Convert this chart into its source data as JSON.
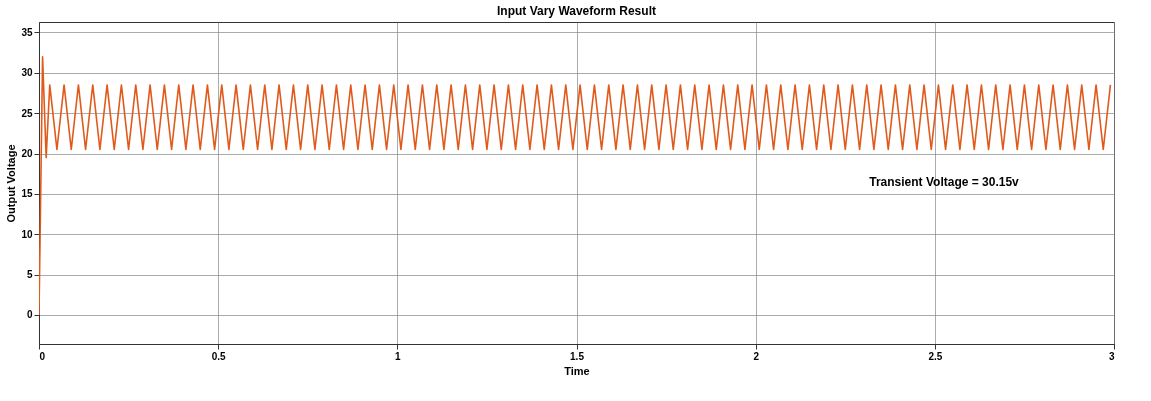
{
  "chart_data": {
    "type": "line",
    "title": "Input Vary Waveform Result",
    "xlabel": "Time",
    "ylabel": "Output Voltage",
    "xlim": [
      0,
      3
    ],
    "xticks": [
      0,
      0.5,
      1,
      1.5,
      2,
      2.5,
      3
    ],
    "ylim": [
      -3.6,
      36.3
    ],
    "yticks": [
      0,
      5,
      10,
      15,
      20,
      25,
      30,
      35
    ],
    "grid": true,
    "annotations": [
      "Transient Voltage = 30.15v"
    ],
    "x": [
      0,
      0.01,
      0.02,
      0.03,
      0.05,
      0.07,
      0.09,
      0.11,
      0.13,
      0.15,
      0.17,
      0.19,
      0.21,
      0.23,
      0.25,
      0.27,
      0.29,
      0.31,
      0.33,
      0.35,
      0.37,
      0.39,
      0.41,
      0.43,
      0.45,
      0.47,
      0.49,
      0.51,
      0.53,
      0.55,
      0.57,
      0.59,
      0.61,
      0.63,
      0.65,
      0.67,
      0.69,
      0.71,
      0.73,
      0.75,
      0.77,
      0.79,
      0.81,
      0.83,
      0.85,
      0.87,
      0.89,
      0.91,
      0.93,
      0.95,
      0.97,
      0.99,
      1.01,
      1.03,
      1.05,
      1.07,
      1.09,
      1.11,
      1.13,
      1.15,
      1.17,
      1.19,
      1.21,
      1.23,
      1.25,
      1.27,
      1.29,
      1.31,
      1.33,
      1.35,
      1.37,
      1.39,
      1.41,
      1.43,
      1.45,
      1.47,
      1.49,
      1.51,
      1.53,
      1.55,
      1.57,
      1.59,
      1.61,
      1.63,
      1.65,
      1.67,
      1.69,
      1.71,
      1.73,
      1.75,
      1.77,
      1.79,
      1.81,
      1.83,
      1.85,
      1.87,
      1.89,
      1.91,
      1.93,
      1.95,
      1.97,
      1.99,
      2.01,
      2.03,
      2.05,
      2.07,
      2.09,
      2.11,
      2.13,
      2.15,
      2.17,
      2.19,
      2.21,
      2.23,
      2.25,
      2.27,
      2.29,
      2.31,
      2.33,
      2.35,
      2.37,
      2.39,
      2.41,
      2.43,
      2.45,
      2.47,
      2.49,
      2.51,
      2.53,
      2.55,
      2.57,
      2.59,
      2.61,
      2.63,
      2.65,
      2.67,
      2.69,
      2.71,
      2.73,
      2.75,
      2.77,
      2.79,
      2.81,
      2.83,
      2.85,
      2.87,
      2.89,
      2.91,
      2.93,
      2.95,
      2.97,
      2.99
    ],
    "series": [
      {
        "color": "#e05a1c",
        "values": [
          0,
          32,
          19.5,
          28.5,
          20.5,
          28.5,
          20.5,
          28.5,
          20.5,
          28.5,
          20.5,
          28.5,
          20.5,
          28.5,
          20.5,
          28.5,
          20.5,
          28.5,
          20.5,
          28.5,
          20.5,
          28.5,
          20.5,
          28.5,
          20.5,
          28.5,
          20.5,
          28.5,
          20.5,
          28.5,
          20.5,
          28.5,
          20.5,
          28.5,
          20.5,
          28.5,
          20.5,
          28.5,
          20.5,
          28.5,
          20.5,
          28.5,
          20.5,
          28.5,
          20.5,
          28.5,
          20.5,
          28.5,
          20.5,
          28.5,
          20.5,
          28.5,
          20.5,
          28.5,
          20.5,
          28.5,
          20.5,
          28.5,
          20.5,
          28.5,
          20.5,
          28.5,
          20.5,
          28.5,
          20.5,
          28.5,
          20.5,
          28.5,
          20.5,
          28.5,
          20.5,
          28.5,
          20.5,
          28.5,
          20.5,
          28.5,
          20.5,
          28.5,
          20.5,
          28.5,
          20.5,
          28.5,
          20.5,
          28.5,
          20.5,
          28.5,
          20.5,
          28.5,
          20.5,
          28.5,
          20.5,
          28.5,
          20.5,
          28.5,
          20.5,
          28.5,
          20.5,
          28.5,
          20.5,
          28.5,
          20.5,
          28.5,
          20.5,
          28.5,
          20.5,
          28.5,
          20.5,
          28.5,
          20.5,
          28.5,
          20.5,
          28.5,
          20.5,
          28.5,
          20.5,
          28.5,
          20.5,
          28.5,
          20.5,
          28.5,
          20.5,
          28.5,
          20.5,
          28.5,
          20.5,
          28.5,
          20.5,
          28.5,
          20.5,
          28.5,
          20.5,
          28.5,
          20.5,
          28.5,
          20.5,
          28.5,
          20.5,
          28.5,
          20.5,
          28.5,
          20.5,
          28.5,
          20.5,
          28.5,
          20.5,
          28.5,
          20.5,
          28.5,
          20.5,
          28.5,
          20.5,
          28.5
        ]
      }
    ]
  }
}
